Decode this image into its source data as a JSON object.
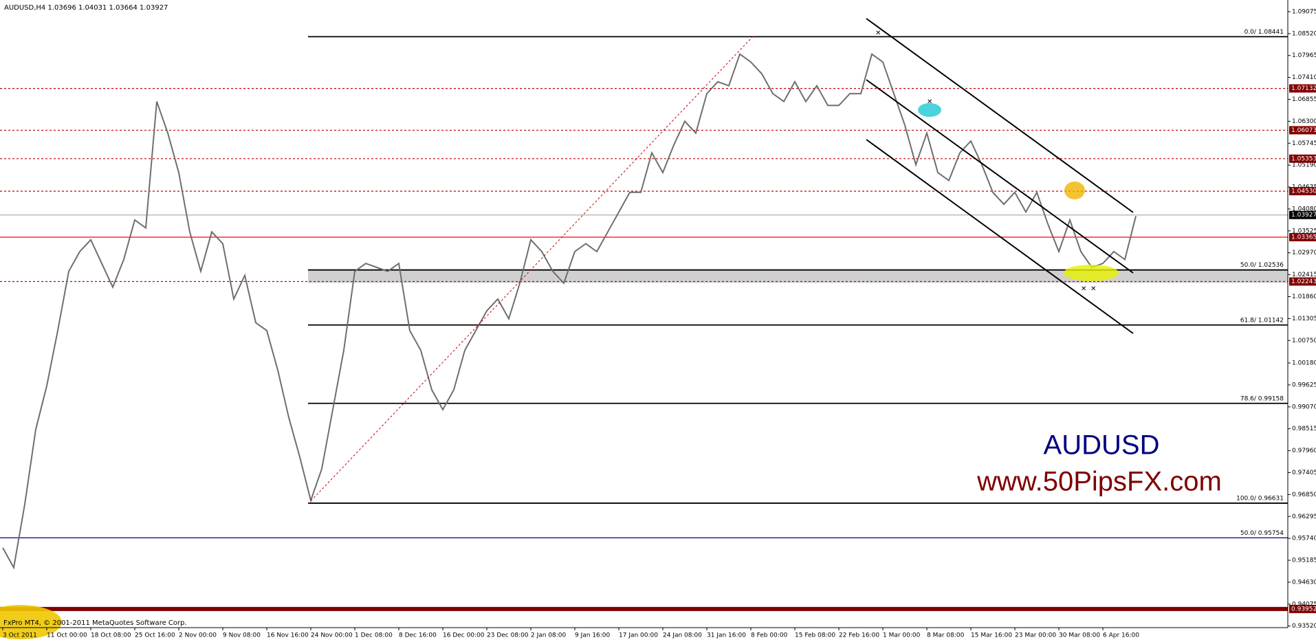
{
  "chart_data": {
    "type": "line",
    "title": "AUDUSD,H4  1.03696 1.04031 1.03664 1.03927",
    "watermark": "AUDUSD",
    "website": "www.50PipsFX.com",
    "footer": "FxPro MT4, © 2001-2011 MetaQuotes Software Corp.",
    "categories": [
      "3 Oct 2011",
      null,
      null,
      null,
      "11 Oct 00:00",
      null,
      null,
      null,
      "18 Oct 08:00",
      null,
      null,
      null,
      "25 Oct 16:00",
      null,
      null,
      null,
      "2 Nov 00:00",
      null,
      null,
      null,
      "9 Nov 08:00",
      null,
      null,
      null,
      "16 Nov 16:00",
      null,
      null,
      null,
      "24 Nov 00:00",
      null,
      null,
      null,
      "1 Dec 08:00",
      null,
      null,
      null,
      "8 Dec 16:00",
      null,
      null,
      null,
      "16 Dec 00:00",
      null,
      null,
      null,
      "23 Dec 08:00",
      null,
      null,
      null,
      "2 Jan 08:00",
      null,
      null,
      null,
      "9 Jan 16:00",
      null,
      null,
      null,
      "17 Jan 00:00",
      null,
      null,
      null,
      "24 Jan 08:00",
      null,
      null,
      null,
      "31 Jan 16:00",
      null,
      null,
      null,
      "8 Feb 00:00",
      null,
      null,
      null,
      "15 Feb 08:00",
      null,
      null,
      null,
      "22 Feb 16:00",
      null,
      null,
      null,
      "1 Mar 00:00",
      null,
      null,
      null,
      "8 Mar 08:00",
      null,
      null,
      null,
      "15 Mar 16:00",
      null,
      null,
      null,
      "23 Mar 00:00",
      null,
      null,
      null,
      "30 Mar 08:00",
      null,
      null,
      null,
      "6 Apr 16:00",
      null,
      null,
      null
    ],
    "series": [
      {
        "name": "AUDUSD",
        "color": "#6e6e6e",
        "values": [
          0.955,
          0.95,
          0.966,
          0.985,
          0.996,
          1.01,
          1.025,
          1.03,
          1.033,
          1.027,
          1.021,
          1.028,
          1.038,
          1.036,
          1.068,
          1.06,
          1.05,
          1.035,
          1.025,
          1.035,
          1.032,
          1.018,
          1.024,
          1.012,
          1.01,
          1.0,
          0.988,
          0.978,
          0.967,
          0.975,
          0.99,
          1.005,
          1.025,
          1.027,
          1.026,
          1.025,
          1.027,
          1.01,
          1.005,
          0.995,
          0.99,
          0.995,
          1.005,
          1.01,
          1.015,
          1.018,
          1.013,
          1.022,
          1.033,
          1.03,
          1.025,
          1.022,
          1.03,
          1.032,
          1.03,
          1.035,
          1.04,
          1.045,
          1.045,
          1.055,
          1.05,
          1.057,
          1.063,
          1.06,
          1.07,
          1.073,
          1.072,
          1.08,
          1.078,
          1.075,
          1.07,
          1.068,
          1.073,
          1.068,
          1.072,
          1.067,
          1.067,
          1.07,
          1.07,
          1.08,
          1.078,
          1.07,
          1.062,
          1.052,
          1.06,
          1.05,
          1.048,
          1.055,
          1.058,
          1.052,
          1.045,
          1.042,
          1.045,
          1.04,
          1.045,
          1.037,
          1.03,
          1.038,
          1.03,
          1.026,
          1.027,
          1.03,
          1.028,
          1.039
        ]
      }
    ],
    "ylim": [
      0.9348,
      1.0937
    ],
    "yticks": [
      1.09075,
      {
        "value": 1.0852,
        "label": "1.08520"
      },
      1.07965,
      {
        "value": 1.0741,
        "label": "1.07410"
      },
      1.06855,
      {
        "value": 1.063,
        "label": "1.06300"
      },
      1.05745,
      {
        "value": 1.0519,
        "label": "1.05190"
      },
      1.04635,
      {
        "value": 1.0408,
        "label": "1.04080"
      },
      1.03525,
      {
        "value": 1.0297,
        "label": "1.02970"
      },
      1.02415,
      {
        "value": 1.0186,
        "label": "1.01860"
      },
      1.01305,
      {
        "value": 1.0075,
        "label": "1.00750"
      },
      {
        "value": 1.0018,
        "label": "1.00180"
      },
      0.99625,
      {
        "value": 0.9907,
        "label": "0.99070"
      },
      0.98515,
      {
        "value": 0.9796,
        "label": "0.97960"
      },
      0.97405,
      {
        "value": 0.9685,
        "label": "0.96850"
      },
      0.96295,
      {
        "value": 0.9574,
        "label": "0.95740"
      },
      0.95185,
      {
        "value": 0.9463,
        "label": "0.94630"
      },
      0.94075,
      {
        "value": 0.9352,
        "label": "0.93520"
      }
    ],
    "zone": [
      1.0221,
      1.02536
    ],
    "levels": [
      {
        "value": 1.08441,
        "color": "#000000",
        "dashed": false,
        "label": "0.0/ 1.08441"
      },
      {
        "value": 1.07132,
        "color": "#c00000",
        "dashed": true,
        "tag": "1.07132"
      },
      {
        "value": 1.06073,
        "color": "#c00000",
        "dashed": true,
        "tag": "1.06073"
      },
      {
        "value": 1.05353,
        "color": "#c00000",
        "dashed": true,
        "tag": "1.05353"
      },
      {
        "value": 1.0453,
        "color": "#c00000",
        "dashed": true,
        "tag": "1.04530"
      },
      {
        "value": 1.03927,
        "color": "#b0b0b0",
        "dashed": false,
        "tag": "1.03927"
      },
      {
        "value": 1.03365,
        "color": "#ff0000",
        "dashed": false,
        "tag": "1.03365"
      },
      {
        "value": 1.02536,
        "color": "#000000",
        "dashed": false,
        "label": "50.0/ 1.02536"
      },
      {
        "value": 1.02243,
        "color": "#c00000",
        "dashed": true,
        "tag": "1.02243"
      },
      {
        "value": 1.01142,
        "color": "#000000",
        "dashed": false,
        "label": "61.8/ 1.01142"
      },
      {
        "value": 0.99158,
        "color": "#000000",
        "dashed": false,
        "label": "78.6/ 0.99158"
      },
      {
        "value": 0.96631,
        "color": "#000000",
        "dashed": false,
        "label": "100.0/ 0.96631"
      },
      {
        "value": 0.95754,
        "color": "#000080",
        "dashed": false,
        "label": "50.0/ 0.95754"
      },
      {
        "value": 0.93952,
        "color": "#800000",
        "dashed": false,
        "tag": "0.93952"
      }
    ]
  }
}
